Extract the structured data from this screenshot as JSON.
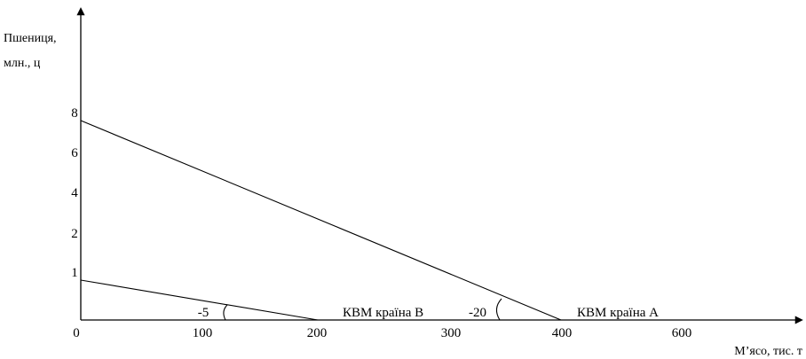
{
  "chart_data": {
    "type": "line",
    "ylabel_line1": "Пшениця,",
    "ylabel_line2": "млн., ц",
    "xlabel": "М’ясо, тис. т",
    "x_ticks": [
      {
        "value": 0,
        "label": "0"
      },
      {
        "value": 100,
        "label": "100"
      },
      {
        "value": 200,
        "label": "200"
      },
      {
        "value": 300,
        "label": "300"
      },
      {
        "value": 400,
        "label": "400"
      },
      {
        "value": 600,
        "label": "600"
      }
    ],
    "y_tick_labels": [
      "1",
      "2",
      "4",
      "6",
      "8"
    ],
    "series": [
      {
        "name": "КВМ країна А",
        "points": [
          [
            0,
            8
          ],
          [
            400,
            0
          ]
        ]
      },
      {
        "name": "КВМ країна В",
        "points": [
          [
            0,
            1
          ],
          [
            200,
            0
          ]
        ]
      }
    ],
    "slope_labels": [
      "-20",
      "-5"
    ],
    "grid": false
  }
}
